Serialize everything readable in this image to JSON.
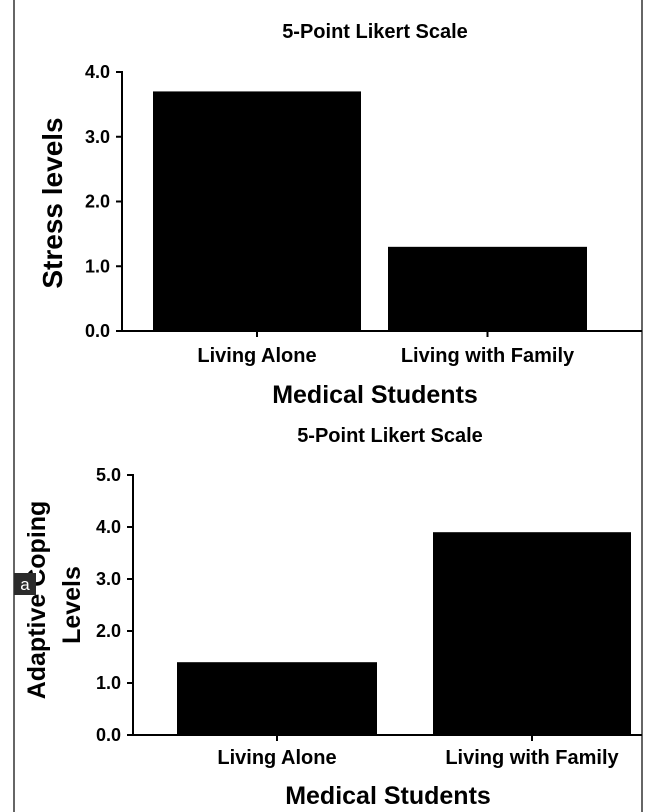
{
  "panel_label": "a",
  "chart_data": [
    {
      "type": "bar",
      "title": "5-Point Likert Scale",
      "xlabel": "Medical Students",
      "ylabel": "Stress levels",
      "categories": [
        "Living Alone",
        "Living with Family"
      ],
      "values": [
        3.7,
        1.3
      ],
      "ylim": [
        0,
        4
      ],
      "yticks": [
        "0.0",
        "1.0",
        "2.0",
        "3.0",
        "4.0"
      ],
      "grid": false,
      "bar_color": "#000000"
    },
    {
      "type": "bar",
      "title": "5-Point Likert Scale",
      "xlabel": "Medical Students",
      "ylabel": [
        "Adaptive Coping",
        "Levels"
      ],
      "categories": [
        "Living Alone",
        "Living with Family"
      ],
      "values": [
        1.4,
        3.9
      ],
      "ylim": [
        0,
        5
      ],
      "yticks": [
        "0.0",
        "1.0",
        "2.0",
        "3.0",
        "4.0",
        "5.0"
      ],
      "grid": false,
      "bar_color": "#000000"
    }
  ]
}
